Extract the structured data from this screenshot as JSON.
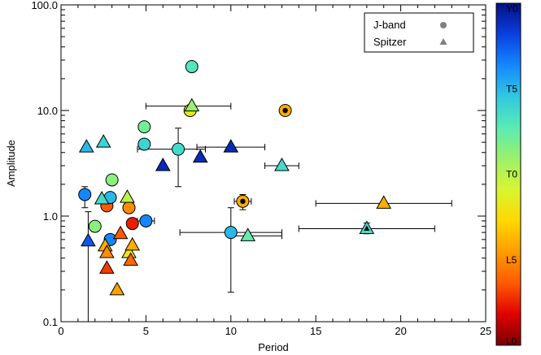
{
  "chart_data": {
    "type": "scatter",
    "title": "",
    "xlabel": "Period",
    "ylabel": "Amplitude",
    "xlim": [
      0,
      25
    ],
    "ylim": [
      0.1,
      100
    ],
    "yscale": "log",
    "x_ticks": [
      0,
      5,
      10,
      15,
      20,
      25
    ],
    "x_tick_labels": [
      "0",
      "5",
      "10",
      "15",
      "20",
      "25"
    ],
    "y_ticks": [
      0.1,
      1,
      10,
      100
    ],
    "y_tick_labels": [
      "0.1",
      "1.0",
      "10.0",
      "100.0"
    ],
    "grid": false,
    "legend": {
      "placement": "top-right",
      "entries": [
        {
          "label": "J-band",
          "marker": "circle",
          "color": "#808080"
        },
        {
          "label": "Spitzer",
          "marker": "triangle",
          "color": "#808080"
        }
      ]
    },
    "colorbar": {
      "labels": [
        "Y0",
        "T5",
        "T0",
        "L5",
        "L0"
      ],
      "label_positions": [
        1.0,
        0.75,
        0.5,
        0.25,
        0.0
      ],
      "gradient": [
        "#7a0000",
        "#e00000",
        "#ff5a00",
        "#ff9b00",
        "#ffd800",
        "#d8f530",
        "#9cf06a",
        "#5aebb4",
        "#30c8e0",
        "#1488ff",
        "#0a40e0",
        "#050f85"
      ]
    },
    "series": [
      {
        "name": "J-band",
        "marker": "circle",
        "points": [
          {
            "x": 1.4,
            "y": 1.6,
            "spt": 0.82,
            "yerr": [
              1.2,
              1.9
            ]
          },
          {
            "x": 2.0,
            "y": 0.8,
            "spt": 0.57
          },
          {
            "x": 2.7,
            "y": 1.25,
            "spt": 0.18
          },
          {
            "x": 2.9,
            "y": 0.6,
            "spt": 0.82
          },
          {
            "x": 3.0,
            "y": 2.2,
            "spt": 0.57
          },
          {
            "x": 2.9,
            "y": 1.5,
            "spt": 0.75
          },
          {
            "x": 4.0,
            "y": 1.2,
            "spt": 0.25
          },
          {
            "x": 4.2,
            "y": 0.85,
            "spt": 0.12
          },
          {
            "x": 5.0,
            "y": 0.9,
            "spt": 0.82,
            "xerr": [
              4.5,
              5.5
            ]
          },
          {
            "x": 4.9,
            "y": 7.0,
            "spt": 0.6
          },
          {
            "x": 4.9,
            "y": 4.8,
            "spt": 0.7
          },
          {
            "x": 7.7,
            "y": 26.0,
            "spt": 0.65
          },
          {
            "x": 7.6,
            "y": 10.0,
            "spt": 0.42
          },
          {
            "x": 6.9,
            "y": 4.3,
            "spt": 0.68,
            "xerr": [
              4.5,
              8.5
            ],
            "yerr": [
              1.9,
              6.8
            ]
          },
          {
            "x": 10.0,
            "y": 0.7,
            "spt": 0.75,
            "xerr": [
              7.0,
              13.0
            ],
            "yerr": [
              0.19,
              1.2
            ]
          },
          {
            "x": 10.7,
            "y": 1.38,
            "spt": 0.3,
            "inner": "#000000",
            "xerr": [
              10.2,
              11.2
            ],
            "yerr": [
              1.15,
              1.6
            ]
          },
          {
            "x": 13.2,
            "y": 10.0,
            "spt": 0.3,
            "inner": "#000000"
          }
        ]
      },
      {
        "name": "Spitzer",
        "marker": "triangle",
        "points": [
          {
            "x": 1.5,
            "y": 4.5,
            "spt": 0.75
          },
          {
            "x": 1.6,
            "y": 0.58,
            "spt": 0.88,
            "yerr": [
              0.1,
              1.1
            ]
          },
          {
            "x": 2.5,
            "y": 5.0,
            "spt": 0.7
          },
          {
            "x": 2.4,
            "y": 1.45,
            "spt": 0.68
          },
          {
            "x": 2.6,
            "y": 0.52,
            "spt": 0.3
          },
          {
            "x": 2.7,
            "y": 0.45,
            "spt": 0.25
          },
          {
            "x": 2.7,
            "y": 0.32,
            "spt": 0.15
          },
          {
            "x": 3.3,
            "y": 0.2,
            "spt": 0.28
          },
          {
            "x": 3.5,
            "y": 0.68,
            "spt": 0.18
          },
          {
            "x": 3.9,
            "y": 1.5,
            "spt": 0.5
          },
          {
            "x": 4.0,
            "y": 0.45,
            "spt": 0.4
          },
          {
            "x": 4.1,
            "y": 0.38,
            "spt": 0.2
          },
          {
            "x": 4.2,
            "y": 0.53,
            "spt": 0.3
          },
          {
            "x": 6.0,
            "y": 3.0,
            "spt": 0.95
          },
          {
            "x": 7.7,
            "y": 11.0,
            "spt": 0.55,
            "xerr": [
              5.0,
              10.0
            ]
          },
          {
            "x": 8.2,
            "y": 3.6,
            "spt": 0.95
          },
          {
            "x": 10.0,
            "y": 4.5,
            "spt": 0.95,
            "xerr": [
              8.0,
              12.0
            ]
          },
          {
            "x": 11.0,
            "y": 0.65,
            "spt": 0.62,
            "xerr": [
              10.0,
              13.0
            ]
          },
          {
            "x": 13.0,
            "y": 3.0,
            "spt": 0.68,
            "xerr": [
              12.0,
              14.0
            ]
          },
          {
            "x": 18.0,
            "y": 0.76,
            "spt": 0.68,
            "inner": "#000000",
            "xerr": [
              14.0,
              22.0
            ],
            "yerr": [
              0.68,
              0.86
            ]
          },
          {
            "x": 19.0,
            "y": 1.32,
            "spt": 0.3,
            "xerr": [
              15.0,
              23.0
            ]
          }
        ]
      }
    ]
  }
}
